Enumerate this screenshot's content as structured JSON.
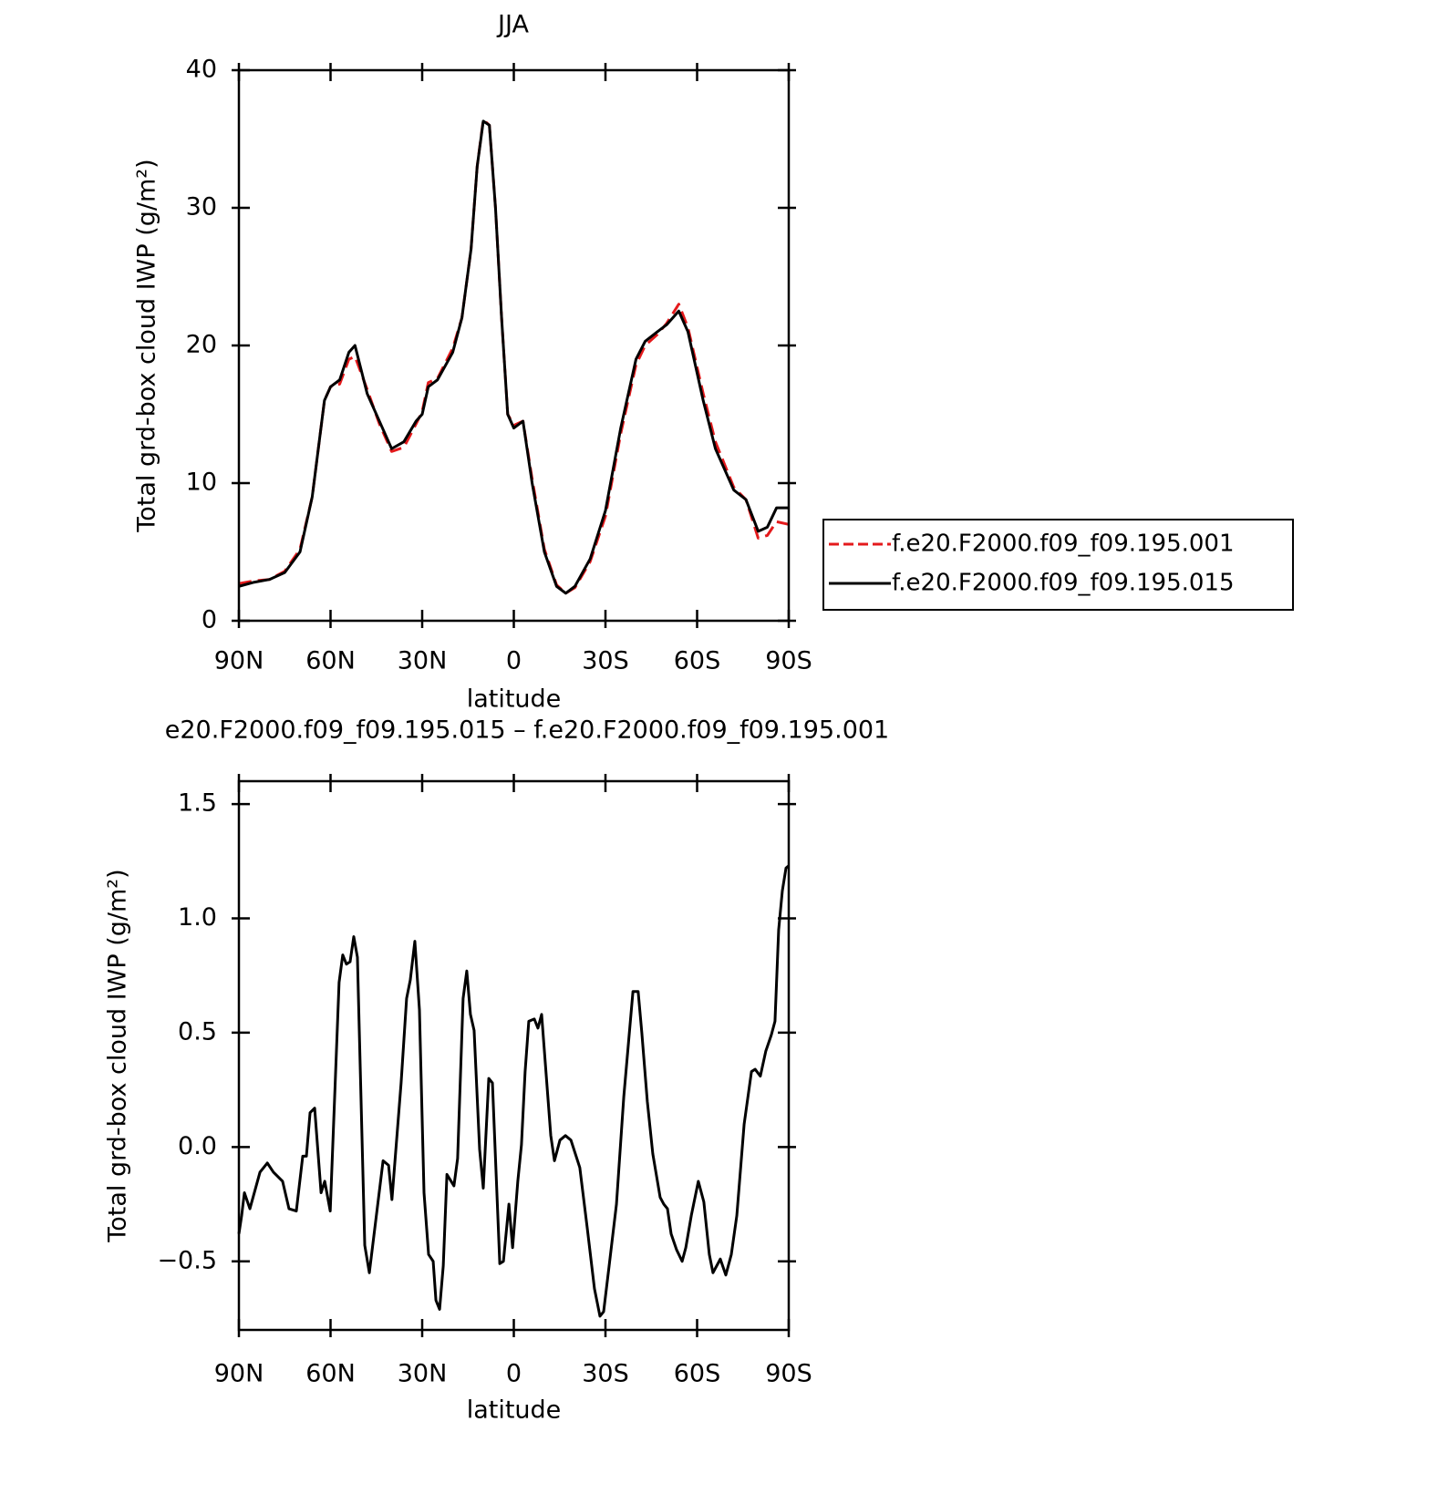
{
  "chart_data": [
    {
      "type": "line",
      "title": "JJA",
      "xlabel": "latitude",
      "ylabel": "Total grd-box cloud IWP (g/m²)",
      "x": [
        90,
        85,
        80,
        75,
        70,
        66,
        62,
        60,
        57,
        54,
        52,
        48,
        44,
        40,
        36,
        32,
        30,
        28,
        25,
        20,
        17,
        14,
        12,
        10,
        8,
        6,
        4,
        2,
        0,
        -3,
        -6,
        -10,
        -14,
        -17,
        -20,
        -25,
        -30,
        -35,
        -40,
        -43,
        -47,
        -50,
        -54,
        -57,
        -62,
        -66,
        -72,
        -76,
        -80,
        -83,
        -86,
        -90
      ],
      "series": [
        {
          "name": "f.e20.F2000.f09_f09.195.001",
          "color": "#e41a1c",
          "line_style": "dashed",
          "values": [
            2.7,
            2.9,
            3.0,
            3.6,
            5.2,
            9,
            16,
            17,
            17.2,
            19,
            19.2,
            16.8,
            14.3,
            12.3,
            12.6,
            14.3,
            15.2,
            17.3,
            17.6,
            19.8,
            22,
            27,
            33,
            36.4,
            36,
            30,
            22,
            15,
            14.2,
            14.5,
            10.3,
            5.2,
            2.6,
            2,
            2.4,
            4.3,
            7.6,
            13.6,
            18.6,
            20,
            20.8,
            21.6,
            23,
            21.3,
            16.5,
            13,
            9.7,
            8.8,
            6,
            6.2,
            7.2,
            7.0
          ]
        },
        {
          "name": "f.e20.F2000.f09_f09.195.015",
          "color": "#000000",
          "line_style": "solid",
          "values": [
            2.5,
            2.8,
            3.0,
            3.5,
            5,
            9,
            16,
            17,
            17.5,
            19.5,
            20,
            16.5,
            14.5,
            12.5,
            13,
            14.5,
            15,
            17,
            17.5,
            19.5,
            22,
            27,
            33,
            36.3,
            36,
            30,
            22,
            15,
            14,
            14.5,
            10,
            5,
            2.5,
            2,
            2.5,
            4.5,
            8,
            14,
            19,
            20.3,
            21,
            21.5,
            22.5,
            21,
            16,
            12.5,
            9.5,
            8.8,
            6.5,
            6.8,
            8.2,
            8.2
          ]
        }
      ],
      "xlim": [
        90,
        -90
      ],
      "xticks": [
        {
          "value": 90,
          "label": "90N"
        },
        {
          "value": 60,
          "label": "60N"
        },
        {
          "value": 30,
          "label": "30N"
        },
        0,
        {
          "value": -30,
          "label": "30S"
        },
        {
          "value": -60,
          "label": "60S"
        },
        {
          "value": -90,
          "label": "90S"
        }
      ],
      "ylim": [
        0,
        40
      ],
      "yticks": [
        0,
        10,
        20,
        30,
        40
      ],
      "grid": false,
      "legend": "right"
    },
    {
      "type": "line",
      "title": "e20.F2000.f09_f09.195.015 – f.e20.F2000.f09_f09.195.001",
      "xlabel": "latitude",
      "ylabel": "Total grd-box cloud IWP (g/m²)",
      "x": [
        90,
        89.1,
        88.2,
        86.4,
        83.1,
        80.7,
        78.7,
        75.7,
        73.6,
        71.2,
        69.1,
        67.9,
        66.7,
        65.2,
        63.1,
        61.9,
        60.1,
        57.2,
        56.0,
        54.8,
        53.6,
        52.4,
        51.2,
        48.8,
        47.3,
        42.8,
        41.0,
        39.9,
        36.9,
        35.1,
        33.9,
        32.4,
        30.9,
        29.4,
        27.9,
        26.4,
        25.5,
        24.3,
        23.1,
        21.9,
        19.6,
        18.4,
        16.6,
        15.4,
        14.2,
        13.0,
        11.2,
        10.0,
        8.2,
        7.0,
        4.6,
        3.4,
        1.6,
        0.4,
        -1.3,
        -2.5,
        -3.7,
        -4.9,
        -6.7,
        -7.9,
        -9.1,
        -12.1,
        -13.3,
        -15.1,
        -16.9,
        -18.7,
        -21.6,
        -24.0,
        -26.4,
        -28.2,
        -29.4,
        -31.2,
        -33.6,
        -36.0,
        -39.0,
        -40.7,
        -41.9,
        -43.7,
        -45.5,
        -47.9,
        -49.1,
        -50.3,
        -51.5,
        -53.3,
        -55.1,
        -56.3,
        -58.1,
        -60.4,
        -62.2,
        -64.0,
        -65.2,
        -67.6,
        -69.4,
        -71.2,
        -73.0,
        -75.4,
        -77.8,
        -79.0,
        -80.7,
        -82.5,
        -84.3,
        -85.5,
        -86.7,
        -87.9,
        -89.1,
        -90
      ],
      "values": [
        -0.38,
        -0.3,
        -0.2,
        -0.27,
        -0.11,
        -0.07,
        -0.11,
        -0.15,
        -0.27,
        -0.28,
        -0.04,
        -0.04,
        0.15,
        0.17,
        -0.2,
        -0.15,
        -0.28,
        0.72,
        0.84,
        0.8,
        0.81,
        0.92,
        0.83,
        -0.43,
        -0.55,
        -0.06,
        -0.08,
        -0.23,
        0.28,
        0.65,
        0.73,
        0.9,
        0.6,
        -0.2,
        -0.47,
        -0.5,
        -0.67,
        -0.71,
        -0.52,
        -0.12,
        -0.17,
        -0.05,
        0.65,
        0.77,
        0.58,
        0.51,
        -0.01,
        -0.18,
        0.3,
        0.28,
        -0.51,
        -0.5,
        -0.25,
        -0.44,
        -0.15,
        0.01,
        0.33,
        0.55,
        0.56,
        0.52,
        0.58,
        0.05,
        -0.06,
        0.03,
        0.05,
        0.03,
        -0.09,
        -0.35,
        -0.62,
        -0.74,
        -0.72,
        -0.52,
        -0.25,
        0.22,
        0.68,
        0.68,
        0.5,
        0.2,
        -0.03,
        -0.22,
        -0.25,
        -0.27,
        -0.38,
        -0.45,
        -0.5,
        -0.44,
        -0.3,
        -0.15,
        -0.24,
        -0.47,
        -0.55,
        -0.49,
        -0.56,
        -0.47,
        -0.3,
        0.1,
        0.33,
        0.34,
        0.31,
        0.42,
        0.49,
        0.55,
        0.95,
        1.12,
        1.22,
        1.23
      ],
      "color": "#000000",
      "xlim": [
        90,
        -90
      ],
      "xticks": [
        {
          "value": 90,
          "label": "90N"
        },
        {
          "value": 60,
          "label": "60N"
        },
        {
          "value": 30,
          "label": "30N"
        },
        0,
        {
          "value": -30,
          "label": "30S"
        },
        {
          "value": -60,
          "label": "60S"
        },
        {
          "value": -90,
          "label": "90S"
        }
      ],
      "ylim": [
        -0.8,
        1.6
      ],
      "yticks": [
        {
          "value": -0.5,
          "label": "−0.5"
        },
        {
          "value": 0,
          "label": "0.0"
        },
        0.5,
        {
          "value": 1,
          "label": "1.0"
        },
        1.5
      ],
      "grid": false
    }
  ]
}
